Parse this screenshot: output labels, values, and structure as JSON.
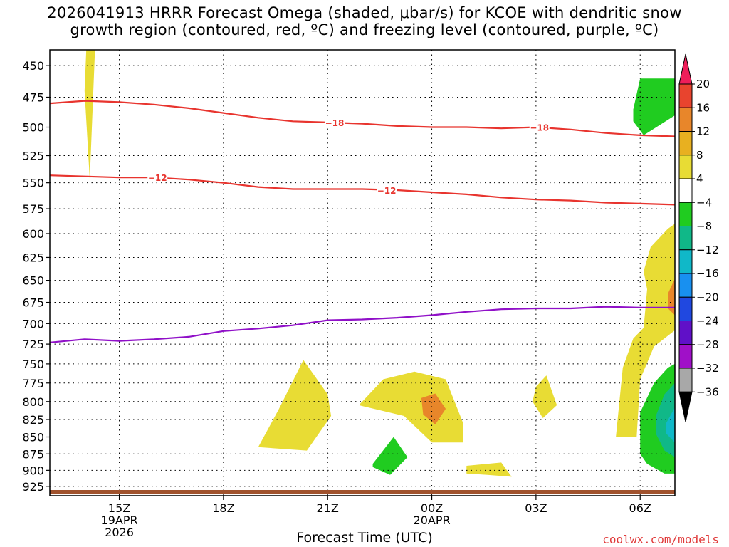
{
  "title_line1": "2026041913 HRRR Forecast Omega (shaded, μbar/s) for KCOE with dendritic snow",
  "title_line2": "growth region (contoured, red, ºC) and freezing level (contoured, purple, ºC)",
  "xlabel": "Forecast Time (UTC)",
  "credit": "coolwx.com/models",
  "chart_data": {
    "type": "heatmap",
    "title": "2026041913 HRRR Forecast Omega (shaded, μbar/s) for KCOE with dendritic snow growth region (contoured, red, ºC) and freezing level (contoured, purple, ºC)",
    "xlabel": "Forecast Time (UTC)",
    "ylabel": "",
    "x_ticks": [
      {
        "label": "15Z",
        "sub1": "19APR",
        "sub2": "2026",
        "hour": 2
      },
      {
        "label": "18Z",
        "sub1": "",
        "sub2": "",
        "hour": 5
      },
      {
        "label": "21Z",
        "sub1": "",
        "sub2": "",
        "hour": 8
      },
      {
        "label": "00Z",
        "sub1": "20APR",
        "sub2": "",
        "hour": 11
      },
      {
        "label": "03Z",
        "sub1": "",
        "sub2": "",
        "hour": 14
      },
      {
        "label": "06Z",
        "sub1": "",
        "sub2": "",
        "hour": 17
      }
    ],
    "xlim_hours": [
      0,
      18
    ],
    "y_ticks": [
      450,
      475,
      500,
      525,
      550,
      575,
      600,
      625,
      650,
      675,
      700,
      725,
      750,
      775,
      800,
      825,
      850,
      875,
      900,
      925
    ],
    "ylim_hpa": [
      438,
      940
    ],
    "y_scale": "log-pressure",
    "grid": true,
    "colorbar": {
      "labels": [
        "20",
        "16",
        "12",
        "8",
        "4",
        "−4",
        "−8",
        "−12",
        "−16",
        "−20",
        "−24",
        "−28",
        "−32",
        "−36"
      ],
      "colors": [
        "#ee1e5a",
        "#e8442e",
        "#e8862a",
        "#e8b020",
        "#e8dc34",
        "#ffffff",
        "#20cc20",
        "#10b888",
        "#10b8c8",
        "#1890f0",
        "#2048e0",
        "#6010c8",
        "#a010c8",
        "#a8a8a8",
        "#000000"
      ]
    },
    "contours": [
      {
        "name": "-18",
        "color": "#e8342e",
        "points": [
          [
            0,
            480
          ],
          [
            1,
            478
          ],
          [
            2,
            479
          ],
          [
            3,
            481
          ],
          [
            4,
            484
          ],
          [
            5,
            488
          ],
          [
            6,
            492
          ],
          [
            7,
            495
          ],
          [
            8,
            496
          ],
          [
            9,
            497
          ],
          [
            10,
            499
          ],
          [
            11,
            500
          ],
          [
            12,
            500
          ],
          [
            13,
            501
          ],
          [
            14,
            500
          ],
          [
            15,
            502
          ],
          [
            16,
            505
          ],
          [
            17,
            507
          ],
          [
            18,
            508
          ]
        ]
      },
      {
        "name": "-12",
        "color": "#e8342e",
        "points": [
          [
            0,
            543
          ],
          [
            1,
            544
          ],
          [
            2,
            545
          ],
          [
            3,
            545
          ],
          [
            4,
            547
          ],
          [
            5,
            550
          ],
          [
            6,
            554
          ],
          [
            7,
            556
          ],
          [
            8,
            556
          ],
          [
            9,
            556
          ],
          [
            10,
            557
          ],
          [
            11,
            559
          ],
          [
            12,
            561
          ],
          [
            13,
            564
          ],
          [
            14,
            566
          ],
          [
            15,
            567
          ],
          [
            16,
            569
          ],
          [
            17,
            570
          ],
          [
            18,
            571
          ]
        ]
      },
      {
        "name": "0",
        "color": "#9010c8",
        "points": [
          [
            0,
            723
          ],
          [
            1,
            719
          ],
          [
            2,
            721
          ],
          [
            3,
            719
          ],
          [
            4,
            716
          ],
          [
            5,
            709
          ],
          [
            6,
            706
          ],
          [
            7,
            702
          ],
          [
            8,
            696
          ],
          [
            9,
            695
          ],
          [
            10,
            693
          ],
          [
            11,
            690
          ],
          [
            12,
            686
          ],
          [
            13,
            683
          ],
          [
            14,
            682
          ],
          [
            15,
            682
          ],
          [
            16,
            680
          ],
          [
            17,
            681
          ],
          [
            18,
            681
          ]
        ]
      }
    ],
    "shaded_regions": [
      {
        "category": "4 to 8",
        "color": "#e8dc34"
      },
      {
        "category": "8 to 12",
        "color": "#e8b020"
      },
      {
        "category": "12 to 16",
        "color": "#e8862a"
      },
      {
        "category": "-4 to -8",
        "color": "#20cc20"
      },
      {
        "category": "-8 to -12",
        "color": "#10b888"
      },
      {
        "category": "-12 to -16",
        "color": "#10b8c8"
      }
    ],
    "contour_labels": [
      {
        "text": "−18",
        "hour": 8.2,
        "hpa": 496
      },
      {
        "text": "−18",
        "hour": 14.1,
        "hpa": 500
      },
      {
        "text": "−12",
        "hour": 3.1,
        "hpa": 545
      },
      {
        "text": "−12",
        "hour": 9.7,
        "hpa": 557
      }
    ],
    "ground_color": "#a0522d"
  }
}
